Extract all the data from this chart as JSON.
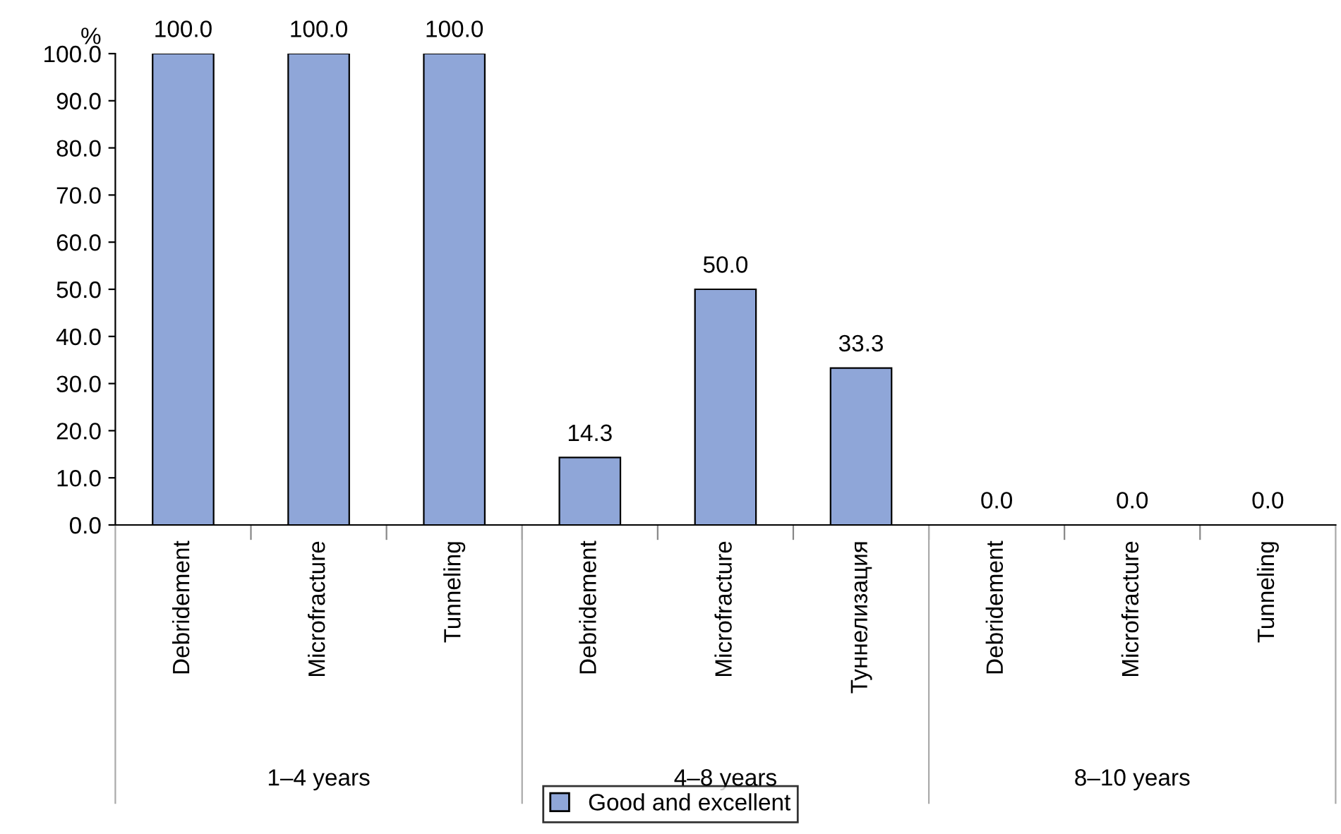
{
  "chart_data": {
    "type": "bar",
    "ylabel": "%",
    "categories": [
      "Debridement",
      "Microfracture",
      "Tunneling",
      "Debridement",
      "Microfracture",
      "Туннелизация",
      "Debridement",
      "Microfracture",
      "Tunneling"
    ],
    "series": [
      {
        "name": "Good and excellent",
        "color": "#8fa6d8",
        "values": [
          100.0,
          100.0,
          100.0,
          14.3,
          50.0,
          33.3,
          0.0,
          0.0,
          0.0
        ],
        "value_labels": [
          "100.0",
          "100.0",
          "100.0",
          "14.3",
          "50.0",
          "33.3",
          "0.0",
          "0.0",
          "0.0"
        ]
      }
    ],
    "ylim": [
      0,
      100
    ],
    "yticks": [
      {
        "value": 0,
        "label": "0.0"
      },
      {
        "value": 10,
        "label": "10.0"
      },
      {
        "value": 20,
        "label": "20.0"
      },
      {
        "value": 30,
        "label": "30.0"
      },
      {
        "value": 40,
        "label": "40.0"
      },
      {
        "value": 50,
        "label": "50.0"
      },
      {
        "value": 60,
        "label": "60.0"
      },
      {
        "value": 70,
        "label": "70.0"
      },
      {
        "value": 80,
        "label": "80.0"
      },
      {
        "value": 90,
        "label": "90.0"
      },
      {
        "value": 100,
        "label": "100.0"
      }
    ],
    "annotations": [
      "1–4 years",
      "4–8 years",
      "8–10 years"
    ],
    "grid": false,
    "legend": "bottom"
  }
}
